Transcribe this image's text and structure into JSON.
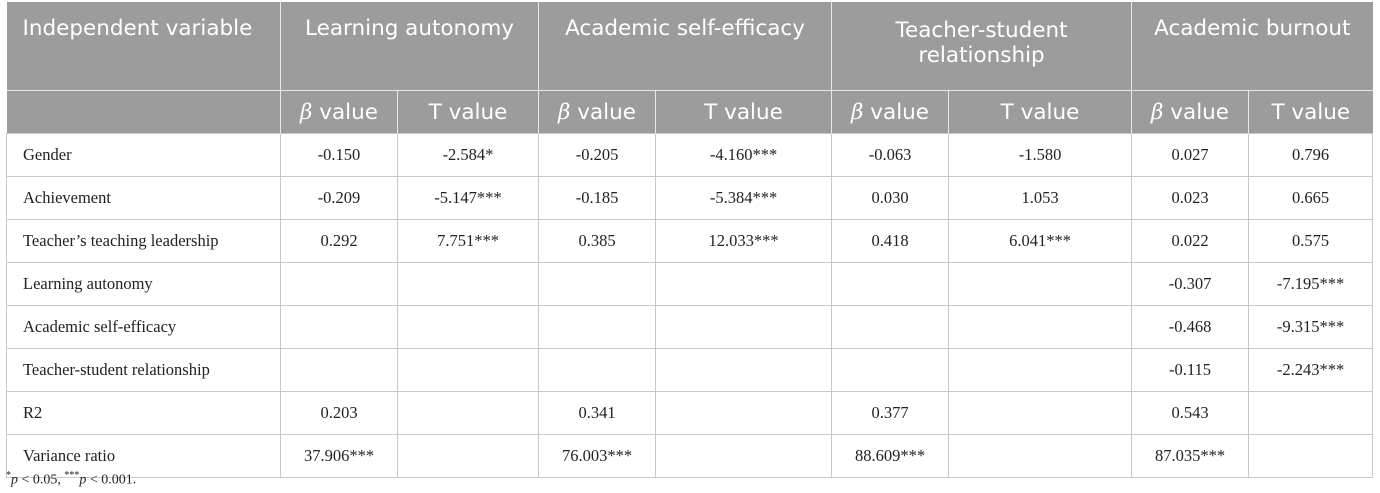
{
  "header": {
    "independent_variable": "Independent variable",
    "groups": [
      {
        "name": "Learning autonomy"
      },
      {
        "name": "Academic self-efficacy"
      },
      {
        "name": "Teacher-student relationship"
      },
      {
        "name": "Academic burnout"
      }
    ],
    "beta_symbol": "β",
    "beta_suffix": " value",
    "t_label": "T value"
  },
  "rows": [
    {
      "label": "Gender",
      "cells": [
        "-0.150",
        "-2.584*",
        "-0.205",
        "-4.160***",
        "-0.063",
        "-1.580",
        "0.027",
        "0.796"
      ]
    },
    {
      "label": "Achievement",
      "cells": [
        "-0.209",
        "-5.147***",
        "-0.185",
        "-5.384***",
        "0.030",
        "1.053",
        "0.023",
        "0.665"
      ]
    },
    {
      "label": "Teacher’s teaching leadership",
      "cells": [
        "0.292",
        "7.751***",
        "0.385",
        "12.033***",
        "0.418",
        "6.041***",
        "0.022",
        "0.575"
      ]
    },
    {
      "label": "Learning autonomy",
      "cells": [
        "",
        "",
        "",
        "",
        "",
        "",
        "-0.307",
        "-7.195***"
      ]
    },
    {
      "label": "Academic self-efficacy",
      "cells": [
        "",
        "",
        "",
        "",
        "",
        "",
        "-0.468",
        "-9.315***"
      ]
    },
    {
      "label": "Teacher-student relationship",
      "cells": [
        "",
        "",
        "",
        "",
        "",
        "",
        "-0.115",
        "-2.243***"
      ]
    },
    {
      "label": "R2",
      "cells": [
        "0.203",
        "",
        "0.341",
        "",
        "0.377",
        "",
        "0.543",
        ""
      ]
    },
    {
      "label": "Variance ratio",
      "cells": [
        "37.906***",
        "",
        "76.003***",
        "",
        "88.609***",
        "",
        "87.035***",
        ""
      ]
    }
  ],
  "footnote": {
    "star1": "*",
    "p1": "p",
    "rest1": " < 0.05, ",
    "star3": "***",
    "p2": "p",
    "rest2": " < 0.001."
  }
}
